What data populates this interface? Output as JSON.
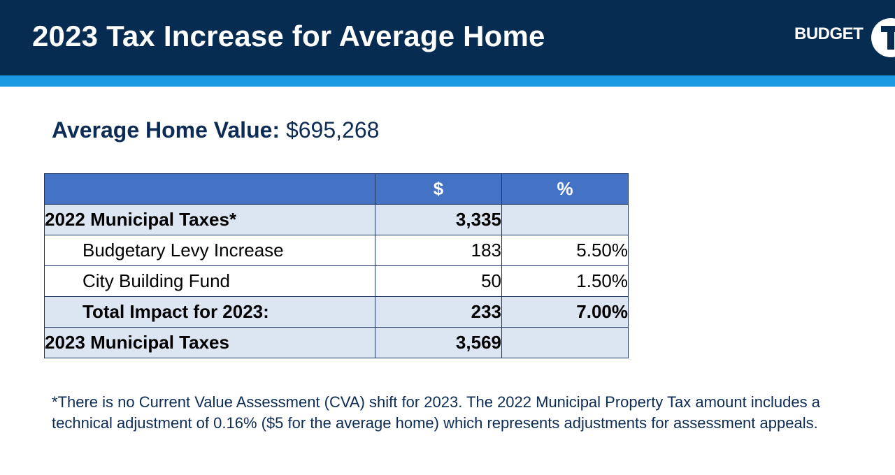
{
  "header": {
    "title": "2023 Tax Increase for Average Home",
    "logo_text": "BUDGET",
    "logo_letter": "T"
  },
  "average_home": {
    "label": "Average Home Value:",
    "value": "$695,268"
  },
  "table": {
    "columns": [
      "",
      "$",
      "%"
    ],
    "rows": [
      {
        "label": "2022 Municipal Taxes*",
        "dollars": "3,335",
        "percent": ""
      },
      {
        "label": "Budgetary Levy Increase",
        "dollars": "183",
        "percent": "5.50%"
      },
      {
        "label": "City Building Fund",
        "dollars": "50",
        "percent": "1.50%"
      },
      {
        "label": "Total Impact for 2023:",
        "dollars": "233",
        "percent": "7.00%"
      },
      {
        "label": "2023 Municipal Taxes",
        "dollars": "3,569",
        "percent": ""
      }
    ]
  },
  "footnote": "*There is no Current Value Assessment (CVA) shift for 2023. The 2022 Municipal Property Tax amount includes a technical adjustment of 0.16% ($5 for the average home) which represents adjustments for assessment appeals."
}
